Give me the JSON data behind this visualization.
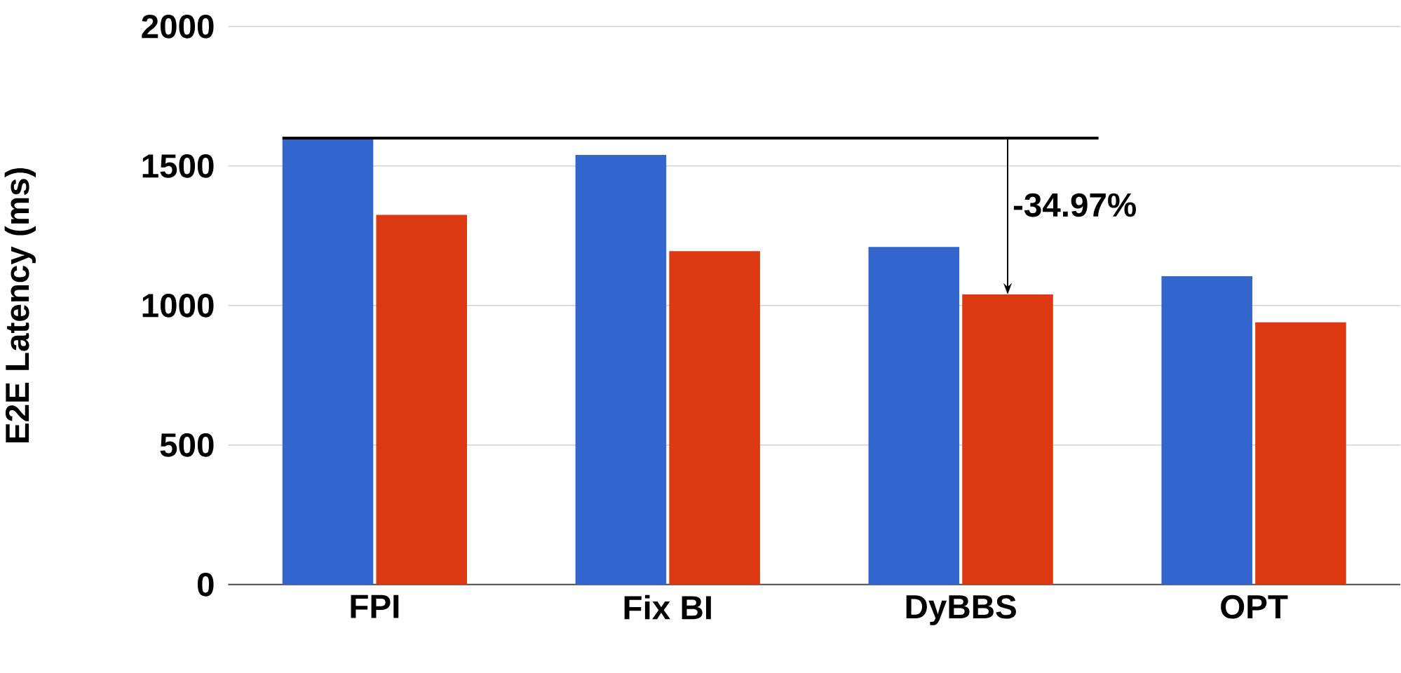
{
  "chart_data": {
    "type": "bar",
    "ylabel": "E2E Latency (ms)",
    "categories": [
      "FPI",
      "Fix BI",
      "DyBBS",
      "OPT"
    ],
    "series": [
      {
        "color": "#3366cc",
        "values": [
          1600,
          1540,
          1210,
          1105
        ]
      },
      {
        "color": "#dc3912",
        "values": [
          1325,
          1195,
          1040,
          940
        ]
      }
    ],
    "ylim": [
      0,
      2000
    ],
    "yticks": [
      0,
      500,
      1000,
      1500,
      2000
    ],
    "grid": "y",
    "ref_lines": [
      {
        "axis": "y",
        "value": 1600,
        "color": "#000000"
      }
    ],
    "annotations": [
      "-34.97%"
    ]
  }
}
